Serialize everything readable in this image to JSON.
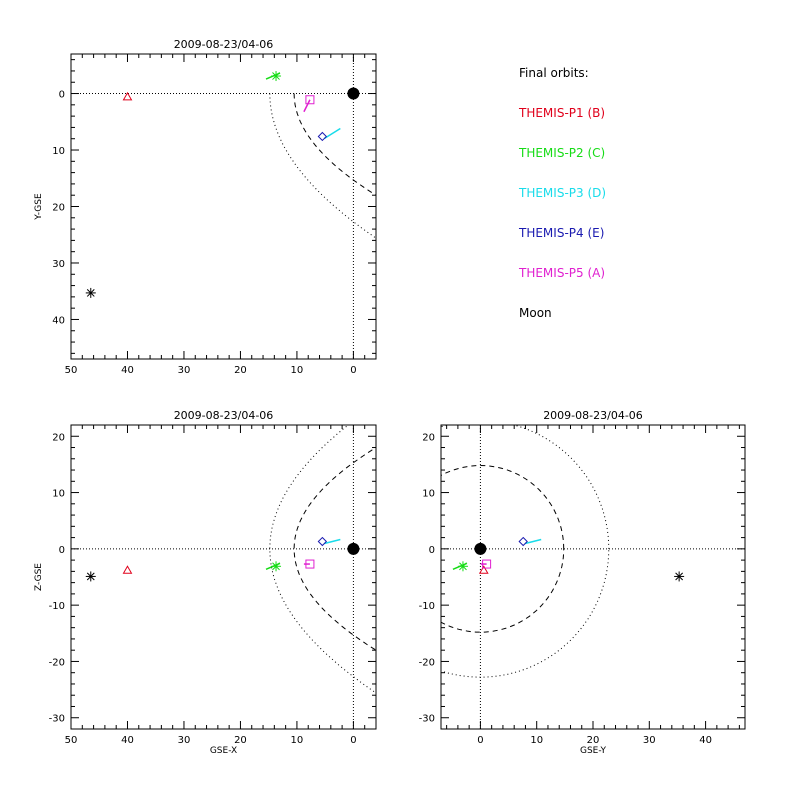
{
  "chart_data": [
    {
      "type": "scatter",
      "title": "2009-08-23/04-06",
      "xlabel": "",
      "ylabel": "Y-GSE",
      "xlim": [
        50,
        -4
      ],
      "ylim": [
        -7,
        47
      ],
      "xticks": [
        50,
        40,
        30,
        20,
        10,
        0
      ],
      "yticks": [
        0,
        10,
        20,
        30,
        40
      ],
      "grid": false
    },
    {
      "type": "scatter",
      "title": "2009-08-23/04-06",
      "xlabel": "GSE-X",
      "ylabel": "Z-GSE",
      "xlim": [
        50,
        -4
      ],
      "ylim": [
        -32,
        22
      ],
      "xticks": [
        50,
        40,
        30,
        20,
        10,
        0
      ],
      "yticks": [
        20,
        10,
        0,
        -10,
        -20,
        -30
      ],
      "grid": false
    },
    {
      "type": "scatter",
      "title": "2009-08-23/04-06",
      "xlabel": "GSE-Y",
      "ylabel": "",
      "xlim": [
        -7,
        47
      ],
      "ylim": [
        -32,
        22
      ],
      "xticks": [
        0,
        10,
        20,
        30,
        40
      ],
      "yticks": [
        20,
        10,
        0,
        -10,
        -20,
        -30
      ],
      "grid": false
    }
  ],
  "legend": {
    "title": "Final orbits:",
    "items": [
      {
        "label": "THEMIS-P1 (B)",
        "color": "#e0001b",
        "symbol": "triangle",
        "x": 40,
        "y": 0.6,
        "z": -3.8
      },
      {
        "label": "THEMIS-P2 (C)",
        "color": "#16dc16",
        "symbol": "asterisk",
        "x": 13.7,
        "y": -3.1,
        "z": -3.1
      },
      {
        "label": "THEMIS-P3 (D)",
        "color": "#18dcea",
        "symbol": "line",
        "x": 5.5,
        "y": 7.6,
        "z": 1.3
      },
      {
        "label": "THEMIS-P4 (E)",
        "color": "#1a1ab0",
        "symbol": "diamond",
        "x": 5.5,
        "y": 7.6,
        "z": 1.3
      },
      {
        "label": "THEMIS-P5 (A)",
        "color": "#e020d0",
        "symbol": "square",
        "x": 7.7,
        "y": 1.1,
        "z": -2.7
      },
      {
        "label": "Moon",
        "color": "#000000",
        "symbol": "asterisk",
        "x": 46.5,
        "y": 35.3,
        "z": -4.9
      }
    ]
  }
}
